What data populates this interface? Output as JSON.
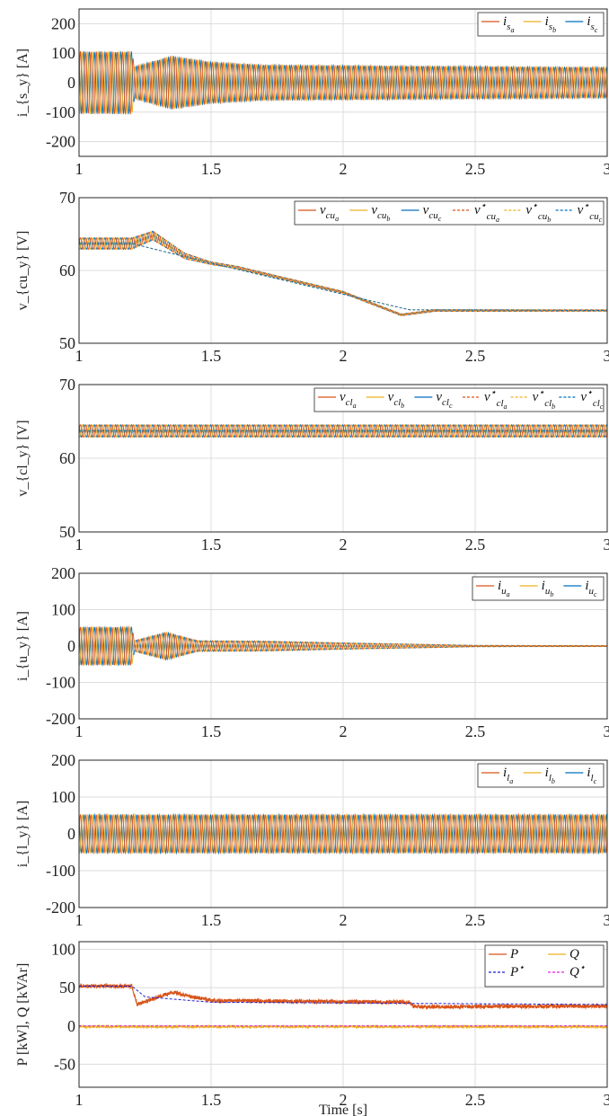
{
  "chart_data": [
    {
      "type": "line",
      "ylabel": "i_{s_y} [A]",
      "xlim": [
        1,
        3
      ],
      "ylim": [
        -250,
        250
      ],
      "xticks": [
        "1",
        "1.5",
        "2",
        "2.5",
        "3"
      ],
      "yticks": [
        "200",
        "100",
        "0",
        "-100",
        "-200"
      ],
      "grid": true,
      "legend_placement": "top-right",
      "legend": [
        {
          "base": "i",
          "sub": "s",
          "subsub": "a",
          "star": false,
          "dashed": false,
          "color": "#d95319"
        },
        {
          "base": "i",
          "sub": "s",
          "subsub": "b",
          "star": false,
          "dashed": false,
          "color": "#edb120"
        },
        {
          "base": "i",
          "sub": "s",
          "subsub": "c",
          "star": false,
          "dashed": false,
          "color": "#0072bd"
        }
      ],
      "signal": {
        "kind": "three_phase_ac",
        "cycles_per_s": 50,
        "amplitude_profile": [
          [
            1.0,
            105
          ],
          [
            1.2,
            105
          ],
          [
            1.21,
            55
          ],
          [
            1.35,
            90
          ],
          [
            1.5,
            70
          ],
          [
            1.7,
            60
          ],
          [
            3.0,
            52
          ]
        ]
      }
    },
    {
      "type": "line",
      "ylabel": "v_{cu_y} [V]",
      "xlim": [
        1,
        3
      ],
      "ylim": [
        50,
        70
      ],
      "xticks": [
        "1",
        "1.5",
        "2",
        "2.5",
        "3"
      ],
      "yticks": [
        "70",
        "60",
        "50"
      ],
      "grid": true,
      "legend_placement": "top-right",
      "legend": [
        {
          "base": "v",
          "sub": "cu",
          "subsub": "a",
          "star": false,
          "dashed": false,
          "color": "#d95319"
        },
        {
          "base": "v",
          "sub": "cu",
          "subsub": "b",
          "star": false,
          "dashed": false,
          "color": "#edb120"
        },
        {
          "base": "v",
          "sub": "cu",
          "subsub": "c",
          "star": false,
          "dashed": false,
          "color": "#0072bd"
        },
        {
          "base": "v",
          "sub": "cu",
          "subsub": "a",
          "star": true,
          "dashed": true,
          "color": "#d95319"
        },
        {
          "base": "v",
          "sub": "cu",
          "subsub": "b",
          "star": true,
          "dashed": true,
          "color": "#edb120"
        },
        {
          "base": "v",
          "sub": "cu",
          "subsub": "c",
          "star": true,
          "dashed": true,
          "color": "#0072bd"
        }
      ],
      "signal": {
        "kind": "dc_ripple",
        "cycles_per_s": 50,
        "mean_profile": [
          [
            1.0,
            63.7
          ],
          [
            1.2,
            63.7
          ],
          [
            1.28,
            64.8
          ],
          [
            1.4,
            62.0
          ],
          [
            1.5,
            61.0
          ],
          [
            1.6,
            60.4
          ],
          [
            2.0,
            57.0
          ],
          [
            2.22,
            53.9
          ],
          [
            2.35,
            54.5
          ],
          [
            3.0,
            54.5
          ]
        ],
        "ripple_profile": [
          [
            1.0,
            0.8
          ],
          [
            1.2,
            0.8
          ],
          [
            1.35,
            0.5
          ],
          [
            1.5,
            0.2
          ],
          [
            1.8,
            0.15
          ],
          [
            3.0,
            0.1
          ]
        ],
        "reference_profile": [
          [
            1.0,
            63.7
          ],
          [
            1.2,
            63.7
          ],
          [
            1.5,
            61.0
          ],
          [
            2.25,
            54.6
          ],
          [
            3.0,
            54.5
          ]
        ]
      }
    },
    {
      "type": "line",
      "ylabel": "v_{cl_y} [V]",
      "xlim": [
        1,
        3
      ],
      "ylim": [
        50,
        70
      ],
      "xticks": [
        "1",
        "1.5",
        "2",
        "2.5",
        "3"
      ],
      "yticks": [
        "70",
        "60",
        "50"
      ],
      "grid": true,
      "legend_placement": "top-right",
      "legend": [
        {
          "base": "v",
          "sub": "cl",
          "subsub": "a",
          "star": false,
          "dashed": false,
          "color": "#d95319"
        },
        {
          "base": "v",
          "sub": "cl",
          "subsub": "b",
          "star": false,
          "dashed": false,
          "color": "#edb120"
        },
        {
          "base": "v",
          "sub": "cl",
          "subsub": "c",
          "star": false,
          "dashed": false,
          "color": "#0072bd"
        },
        {
          "base": "v",
          "sub": "cl",
          "subsub": "a",
          "star": true,
          "dashed": true,
          "color": "#d95319"
        },
        {
          "base": "v",
          "sub": "cl",
          "subsub": "b",
          "star": true,
          "dashed": true,
          "color": "#edb120"
        },
        {
          "base": "v",
          "sub": "cl",
          "subsub": "c",
          "star": true,
          "dashed": true,
          "color": "#0072bd"
        }
      ],
      "signal": {
        "kind": "dc_ripple",
        "cycles_per_s": 50,
        "mean_profile": [
          [
            1.0,
            63.7
          ],
          [
            3.0,
            63.7
          ]
        ],
        "ripple_profile": [
          [
            1.0,
            0.85
          ],
          [
            3.0,
            0.85
          ]
        ],
        "reference_profile": [
          [
            1.0,
            63.7
          ],
          [
            3.0,
            63.7
          ]
        ]
      }
    },
    {
      "type": "line",
      "ylabel": "i_{u_y} [A]",
      "xlim": [
        1,
        3
      ],
      "ylim": [
        -200,
        200
      ],
      "xticks": [
        "1",
        "1.5",
        "2",
        "2.5",
        "3"
      ],
      "yticks": [
        "200",
        "100",
        "0",
        "-100",
        "-200"
      ],
      "grid": true,
      "legend_placement": "top-right",
      "legend": [
        {
          "base": "i",
          "sub": "u",
          "subsub": "a",
          "star": false,
          "dashed": false,
          "color": "#d95319"
        },
        {
          "base": "i",
          "sub": "u",
          "subsub": "b",
          "star": false,
          "dashed": false,
          "color": "#edb120"
        },
        {
          "base": "i",
          "sub": "u",
          "subsub": "c",
          "star": false,
          "dashed": false,
          "color": "#0072bd"
        }
      ],
      "signal": {
        "kind": "three_phase_ac",
        "cycles_per_s": 50,
        "amplitude_profile": [
          [
            1.0,
            52
          ],
          [
            1.2,
            52
          ],
          [
            1.21,
            15
          ],
          [
            1.33,
            38
          ],
          [
            1.45,
            15
          ],
          [
            1.7,
            14
          ],
          [
            2.0,
            9
          ],
          [
            2.3,
            5
          ],
          [
            2.5,
            2
          ],
          [
            3.0,
            1.5
          ]
        ]
      }
    },
    {
      "type": "line",
      "ylabel": "i_{l_y} [A]",
      "xlim": [
        1,
        3
      ],
      "ylim": [
        -200,
        200
      ],
      "xticks": [
        "1",
        "1.5",
        "2",
        "2.5",
        "3"
      ],
      "yticks": [
        "200",
        "100",
        "0",
        "-100",
        "-200"
      ],
      "grid": true,
      "legend_placement": "top-right",
      "legend": [
        {
          "base": "i",
          "sub": "l",
          "subsub": "a",
          "star": false,
          "dashed": false,
          "color": "#d95319"
        },
        {
          "base": "i",
          "sub": "l",
          "subsub": "b",
          "star": false,
          "dashed": false,
          "color": "#edb120"
        },
        {
          "base": "i",
          "sub": "l",
          "subsub": "c",
          "star": false,
          "dashed": false,
          "color": "#0072bd"
        }
      ],
      "signal": {
        "kind": "three_phase_ac",
        "cycles_per_s": 50,
        "amplitude_profile": [
          [
            1.0,
            52
          ],
          [
            3.0,
            52
          ]
        ]
      }
    },
    {
      "type": "line",
      "ylabel": "P [kW], Q [kVAr]",
      "xlabel": "Time [s]",
      "xlim": [
        1,
        3
      ],
      "ylim": [
        -80,
        110
      ],
      "xticks": [
        "1",
        "1.5",
        "2",
        "2.5",
        "3"
      ],
      "yticks": [
        "100",
        "50",
        "0",
        "-50"
      ],
      "ytick_values": [
        100,
        50,
        0,
        -50
      ],
      "grid": true,
      "legend_placement": "top-right",
      "legend_columns": 2,
      "legend": [
        {
          "base": "P",
          "sub": "",
          "subsub": "",
          "star": false,
          "dashed": false,
          "color": "#d95319"
        },
        {
          "base": "Q",
          "sub": "",
          "subsub": "",
          "star": false,
          "dashed": false,
          "color": "#edb120"
        },
        {
          "base": "P",
          "sub": "",
          "subsub": "",
          "star": true,
          "dashed": true,
          "color": "#1f1fd6"
        },
        {
          "base": "Q",
          "sub": "",
          "subsub": "",
          "star": true,
          "dashed": true,
          "color": "#e020e0"
        }
      ],
      "signal": {
        "kind": "power",
        "P_profile": [
          [
            1.0,
            52
          ],
          [
            1.2,
            52
          ],
          [
            1.22,
            28
          ],
          [
            1.35,
            44
          ],
          [
            1.5,
            33
          ],
          [
            2.25,
            31
          ],
          [
            2.27,
            25
          ],
          [
            3.0,
            26
          ]
        ],
        "P_ref_profile": [
          [
            1.0,
            52
          ],
          [
            1.2,
            52
          ],
          [
            1.25,
            38
          ],
          [
            1.5,
            31
          ],
          [
            2.0,
            30
          ],
          [
            3.0,
            28
          ]
        ],
        "Q_profile": [
          [
            1.0,
            -1
          ],
          [
            3.0,
            -1
          ]
        ],
        "Q_ref_profile": [
          [
            1.0,
            0
          ],
          [
            3.0,
            0
          ]
        ],
        "P_noise": 2.5,
        "Q_noise": 1.2
      }
    }
  ],
  "colors": {
    "phase_a": "#d95319",
    "phase_b": "#edb120",
    "phase_c": "#0072bd",
    "p_ref": "#1f1fd6",
    "q_ref": "#e020e0"
  }
}
